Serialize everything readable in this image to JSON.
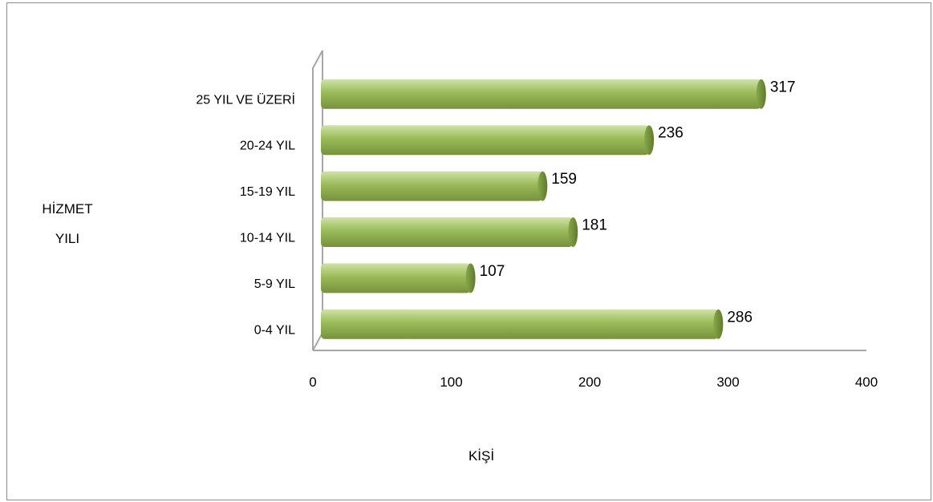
{
  "chart_data": {
    "type": "bar",
    "orientation": "horizontal",
    "categories": [
      "0-4 YIL",
      "5-9 YIL",
      "10-14 YIL",
      "15-19 YIL",
      "20-24 YIL",
      "25 YIL VE ÜZERİ"
    ],
    "values": [
      286,
      107,
      181,
      159,
      236,
      317
    ],
    "xlabel": "KİŞİ",
    "ylabel": "HİZMET YILI",
    "ylabel_lines": [
      "HİZMET",
      "YILI"
    ],
    "xlim": [
      0,
      400
    ],
    "xticks": [
      "0",
      "100",
      "200",
      "300",
      "400"
    ],
    "data_labels": [
      "286",
      "107",
      "181",
      "159",
      "236",
      "317"
    ],
    "grid": false,
    "legend": "none",
    "bar_color": "#9bbb59",
    "bar_color_light": "#c3d99a",
    "bar_color_dark": "#76923c"
  }
}
